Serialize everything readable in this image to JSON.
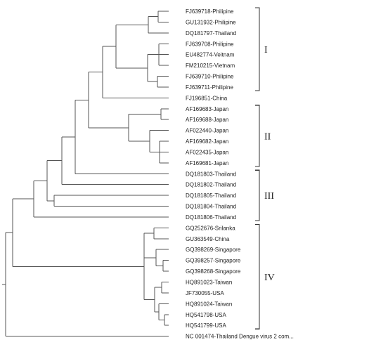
{
  "tree": {
    "leaves": [
      "FJ639718-Philipine",
      "GU131932-Philipine",
      "DQ181797-Thailand",
      "FJ639708-Philipine",
      "EU482774-Veitnam",
      "FM210215-Vietnam",
      "FJ639710-Philipine",
      "FJ639711-Philipine",
      "FJ196851-China",
      "AF169683-Japan",
      "AF169688-Japan",
      "AF022440-Japan",
      "AF169682-Japan",
      "AF022435-Japan",
      "AF169681-Japan",
      "DQ181803-Thailand",
      "DQ181802-Thailand",
      "DQ181805-Thailand",
      "DQ181804-Thailand",
      "DQ181806-Thailand",
      "GQ252676-Srilanka",
      "GU363549-China",
      "GQ398269-Singapore",
      "GQ398257-Singapore",
      "GQ398268-Singapore",
      "HQ891023-Taiwan",
      "JF730055-USA",
      "HQ891024-Taiwan",
      "HQ541798-USA",
      "HQ541799-USA",
      "NC 001474-Thailand Dengue virus 2 com..."
    ],
    "groups": [
      {
        "label": "I",
        "from": 0,
        "to": 7
      },
      {
        "label": "II",
        "from": 9,
        "to": 14
      },
      {
        "label": "III",
        "from": 15,
        "to": 19
      },
      {
        "label": "IV",
        "from": 20,
        "to": 29
      }
    ]
  }
}
